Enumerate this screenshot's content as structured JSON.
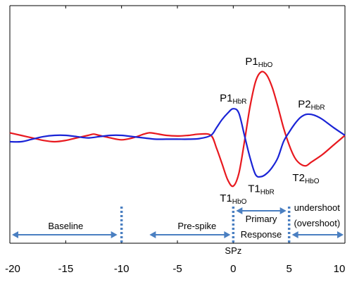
{
  "chart_data": {
    "type": "line",
    "title": "",
    "xlabel": "",
    "ylabel": "",
    "xlim": [
      -20,
      10
    ],
    "x_ticks": [
      -20,
      -15,
      -10,
      -5,
      0,
      5,
      10
    ],
    "grid": false,
    "legend": "none",
    "series": [
      {
        "color": "#e8191f",
        "points": [
          [
            -20,
            0.04
          ],
          [
            -19,
            0.0
          ],
          [
            -18,
            -0.04
          ],
          [
            -17,
            -0.08
          ],
          [
            -16,
            -0.1
          ],
          [
            -15,
            -0.08
          ],
          [
            -14,
            -0.04
          ],
          [
            -13,
            0.0
          ],
          [
            -12.5,
            0.02
          ],
          [
            -12,
            0.0
          ],
          [
            -11,
            -0.04
          ],
          [
            -10,
            -0.07
          ],
          [
            -9,
            -0.04
          ],
          [
            -8,
            0.02
          ],
          [
            -7.5,
            0.04
          ],
          [
            -7,
            0.03
          ],
          [
            -6,
            0.0
          ],
          [
            -5,
            -0.01
          ],
          [
            -4,
            0.0
          ],
          [
            -3,
            0.02
          ],
          [
            -2,
            0.0
          ],
          [
            -1.5,
            -0.2
          ],
          [
            -1,
            -0.45
          ],
          [
            -0.5,
            -0.7
          ],
          [
            0,
            -0.8
          ],
          [
            0.5,
            -0.6
          ],
          [
            1,
            -0.1
          ],
          [
            1.5,
            0.45
          ],
          [
            2,
            0.85
          ],
          [
            2.5,
            1.0
          ],
          [
            3,
            0.95
          ],
          [
            3.5,
            0.75
          ],
          [
            4,
            0.45
          ],
          [
            4.5,
            0.12
          ],
          [
            5,
            -0.15
          ],
          [
            5.5,
            -0.35
          ],
          [
            6,
            -0.45
          ],
          [
            6.5,
            -0.48
          ],
          [
            7,
            -0.42
          ],
          [
            8,
            -0.3
          ],
          [
            9,
            -0.15
          ],
          [
            10,
            0.0
          ]
        ]
      },
      {
        "color": "#1a24d6",
        "points": [
          [
            -20,
            -0.1
          ],
          [
            -19,
            -0.1
          ],
          [
            -18,
            -0.06
          ],
          [
            -17,
            -0.02
          ],
          [
            -16,
            0.0
          ],
          [
            -15,
            0.0
          ],
          [
            -14,
            -0.02
          ],
          [
            -13,
            -0.04
          ],
          [
            -12,
            -0.02
          ],
          [
            -11,
            0.0
          ],
          [
            -10,
            0.0
          ],
          [
            -9,
            -0.02
          ],
          [
            -8,
            -0.04
          ],
          [
            -7,
            -0.06
          ],
          [
            -6,
            -0.06
          ],
          [
            -5,
            -0.06
          ],
          [
            -4,
            -0.06
          ],
          [
            -3,
            -0.05
          ],
          [
            -2,
            0.0
          ],
          [
            -1.5,
            0.12
          ],
          [
            -1,
            0.25
          ],
          [
            -0.5,
            0.35
          ],
          [
            0,
            0.42
          ],
          [
            0.5,
            0.35
          ],
          [
            1,
            0.0
          ],
          [
            1.5,
            -0.35
          ],
          [
            2,
            -0.62
          ],
          [
            2.5,
            -0.65
          ],
          [
            3,
            -0.6
          ],
          [
            3.5,
            -0.5
          ],
          [
            4,
            -0.35
          ],
          [
            4.5,
            -0.1
          ],
          [
            5,
            0.05
          ],
          [
            5.5,
            0.18
          ],
          [
            6,
            0.28
          ],
          [
            6.5,
            0.33
          ],
          [
            7,
            0.33
          ],
          [
            7.5,
            0.3
          ],
          [
            8,
            0.25
          ],
          [
            9,
            0.12
          ],
          [
            10,
            0.0
          ]
        ]
      }
    ],
    "peak_labels": [
      {
        "x": 2.3,
        "y": 1.0,
        "main": "P1",
        "sub": "HbO"
      },
      {
        "x": 0.0,
        "y": 0.42,
        "main": "P1",
        "sub": "HbR"
      },
      {
        "x": 7.0,
        "y": 0.33,
        "main": "P2",
        "sub": "HbR"
      },
      {
        "x": 0.0,
        "y": -0.8,
        "main": "T1",
        "sub": "HbO"
      },
      {
        "x": 2.5,
        "y": -0.65,
        "main": "T1",
        "sub": "HbR"
      },
      {
        "x": 6.5,
        "y": -0.48,
        "main": "T2",
        "sub": "HbO"
      }
    ],
    "phase_markers": [
      -10,
      0,
      5
    ],
    "phases": [
      {
        "label": "Baseline",
        "from": -20,
        "to": -10
      },
      {
        "label": "Pre-spike",
        "from": -7.5,
        "to": 0
      },
      {
        "label": "Primary\nResponse",
        "from": 0,
        "to": 5
      },
      {
        "label": "undershoot\n(overshoot)",
        "from": 5,
        "to": 10
      }
    ],
    "marker_label": "SPz"
  }
}
